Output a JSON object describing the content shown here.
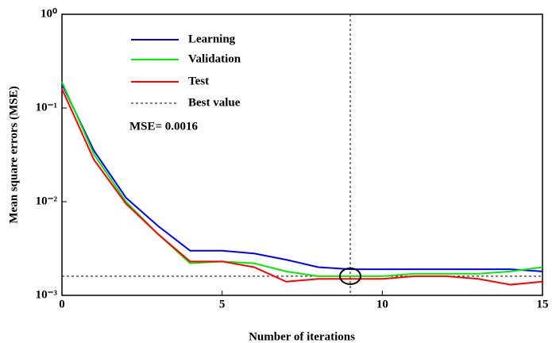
{
  "chart_data": {
    "type": "line",
    "x": [
      0,
      1,
      2,
      3,
      4,
      5,
      6,
      7,
      8,
      9,
      10,
      11,
      12,
      13,
      14,
      15
    ],
    "series": [
      {
        "name": "Learning",
        "color": "#0000ff",
        "values": [
          0.18,
          0.035,
          0.011,
          0.0055,
          0.003,
          0.003,
          0.0028,
          0.0024,
          0.002,
          0.0019,
          0.0019,
          0.0019,
          0.0019,
          0.0019,
          0.0019,
          0.0018
        ]
      },
      {
        "name": "Validation",
        "color": "#00ee00",
        "values": [
          0.19,
          0.032,
          0.01,
          0.0045,
          0.0022,
          0.0023,
          0.0022,
          0.0018,
          0.0016,
          0.0016,
          0.0016,
          0.0017,
          0.0017,
          0.0017,
          0.0018,
          0.002
        ]
      },
      {
        "name": "Test",
        "color": "#ff0000",
        "values": [
          0.16,
          0.028,
          0.0095,
          0.0045,
          0.0023,
          0.0023,
          0.002,
          0.0014,
          0.0015,
          0.0015,
          0.0015,
          0.0016,
          0.0016,
          0.0015,
          0.0013,
          0.0014
        ]
      }
    ],
    "best": {
      "name": "Best value",
      "x": 9,
      "y": 0.0016
    },
    "annotation": "MSE= 0.0016",
    "x_label": "Number of iterations",
    "y_label": "Mean square errors (MSE)",
    "xlim": [
      0,
      15
    ],
    "xticks": [
      0,
      5,
      10,
      15
    ],
    "ylim": [
      0.001,
      1
    ],
    "log_y": true,
    "yticks": [
      {
        "value": 0.001,
        "label": "10⁻³"
      },
      {
        "value": 0.01,
        "label": "10⁻²"
      },
      {
        "value": 0.1,
        "label": "10⁻¹"
      },
      {
        "value": 1,
        "label": "10⁰"
      }
    ]
  }
}
